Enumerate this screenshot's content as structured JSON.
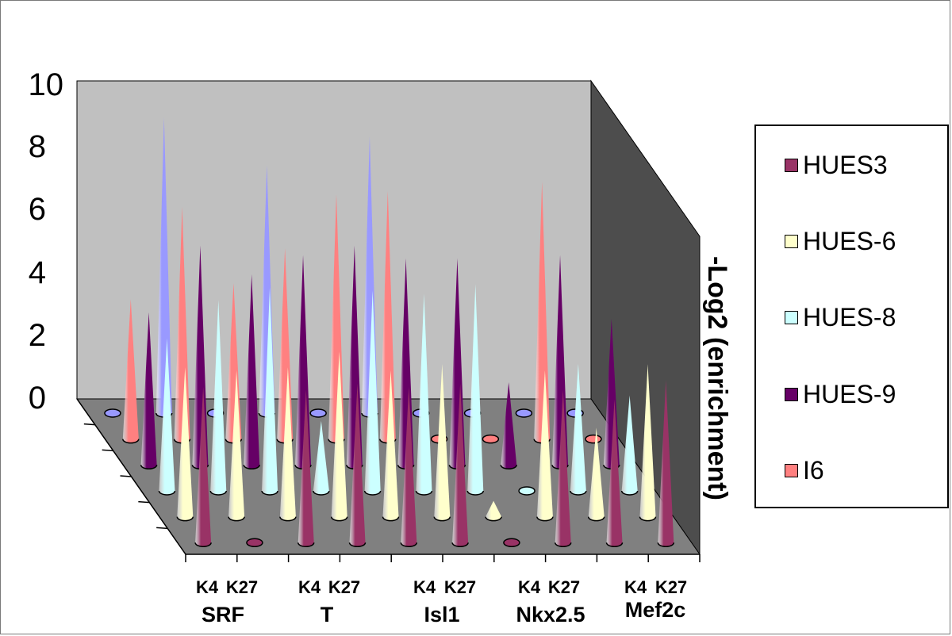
{
  "chart_data": {
    "type": "3d-cone-bar",
    "title": "",
    "ylabel": "-Log2 (enrichment)",
    "ylim": [
      0,
      10
    ],
    "yticks": [
      "0",
      "2",
      "4",
      "6",
      "8",
      "10"
    ],
    "genes": [
      "SRF",
      "T",
      "Isl1",
      "Nkx2.5",
      "Mef2c"
    ],
    "marks": [
      "K4",
      "K27"
    ],
    "categories": [
      "SRF K4",
      "SRF K27",
      "T K4",
      "T K27",
      "Isl1 K4",
      "Isl1 K27",
      "Nkx2.5 K4",
      "Nkx2.5 K27",
      "Mef2c K4",
      "Mef2c K27"
    ],
    "series": [
      {
        "name": "HUES3",
        "color": "#993366",
        "values": [
          4.9,
          0,
          4.8,
          5.0,
          4.9,
          5.0,
          0,
          4.8,
          4.5,
          5.1
        ]
      },
      {
        "name": "HUES-6",
        "color": "#ffffcc",
        "values": [
          4.7,
          4.6,
          4.7,
          5.2,
          4.6,
          4.8,
          0.5,
          4.6,
          2.8,
          4.8
        ]
      },
      {
        "name": "HUES-8",
        "color": "#ccffff",
        "values": [
          4.8,
          6.0,
          6.4,
          2.2,
          6.3,
          6.2,
          6.5,
          0,
          4.0,
          3.0
        ]
      },
      {
        "name": "HUES-9",
        "color": "#660066",
        "values": [
          4.8,
          6.9,
          6.0,
          6.6,
          6.9,
          6.5,
          6.5,
          2.6,
          6.6,
          4.6
        ]
      },
      {
        "name": "I6",
        "color": "#ff8080",
        "values": [
          4.4,
          7.3,
          4.9,
          6.0,
          7.7,
          7.8,
          0,
          0,
          8.1,
          0
        ]
      },
      {
        "name": "",
        "color": "#9999ff",
        "values": [
          0,
          9.3,
          0,
          7.8,
          0,
          8.7,
          0,
          0,
          0,
          0
        ]
      }
    ]
  },
  "legend": {
    "items": [
      {
        "name": "HUES3",
        "color": "#993366"
      },
      {
        "name": "HUES-6",
        "color": "#ffffcc"
      },
      {
        "name": "HUES-8",
        "color": "#ccffff"
      },
      {
        "name": "HUES-9",
        "color": "#660066"
      },
      {
        "name": "I6",
        "color": "#ff8080"
      }
    ]
  }
}
